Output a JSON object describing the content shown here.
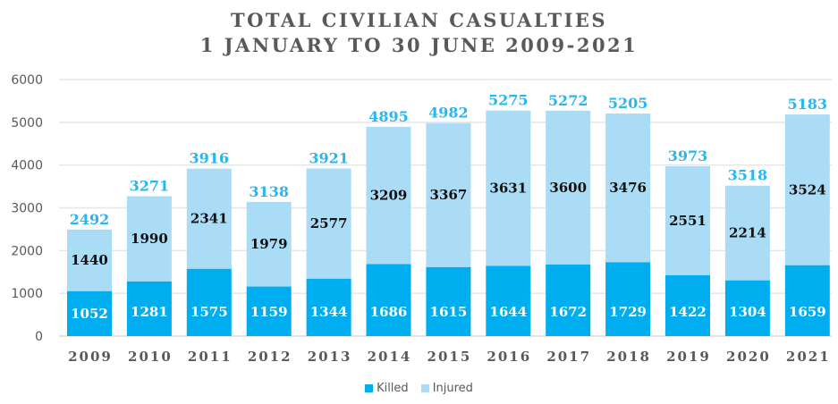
{
  "chart_data": {
    "type": "bar",
    "stacked": true,
    "title": "TOTAL CIVILIAN CASUALTIES",
    "subtitle": "1 JANUARY TO 30 JUNE 2009-2021",
    "xlabel": "",
    "ylabel": "",
    "ylim": [
      0,
      6000
    ],
    "yticks": [
      0,
      1000,
      2000,
      3000,
      4000,
      5000,
      6000
    ],
    "grid": true,
    "legend_position": "bottom",
    "categories": [
      "2009",
      "2010",
      "2011",
      "2012",
      "2013",
      "2014",
      "2015",
      "2016",
      "2017",
      "2018",
      "2019",
      "2020",
      "2021"
    ],
    "series": [
      {
        "name": "Killed",
        "color": "#00aeef",
        "values": [
          1052,
          1281,
          1575,
          1159,
          1344,
          1686,
          1615,
          1644,
          1672,
          1729,
          1422,
          1304,
          1659
        ]
      },
      {
        "name": "Injured",
        "color": "#abdcf5",
        "values": [
          1440,
          1990,
          2341,
          1979,
          2577,
          3209,
          3367,
          3631,
          3600,
          3476,
          2551,
          2214,
          3524
        ]
      }
    ],
    "totals": [
      2492,
      3271,
      3916,
      3138,
      3921,
      4895,
      4982,
      5275,
      5272,
      5205,
      3973,
      3518,
      5183
    ],
    "total_label_color": "#29b6f0"
  },
  "legend": [
    {
      "label": "Killed",
      "color": "#00aeef"
    },
    {
      "label": "Injured",
      "color": "#abdcf5"
    }
  ]
}
